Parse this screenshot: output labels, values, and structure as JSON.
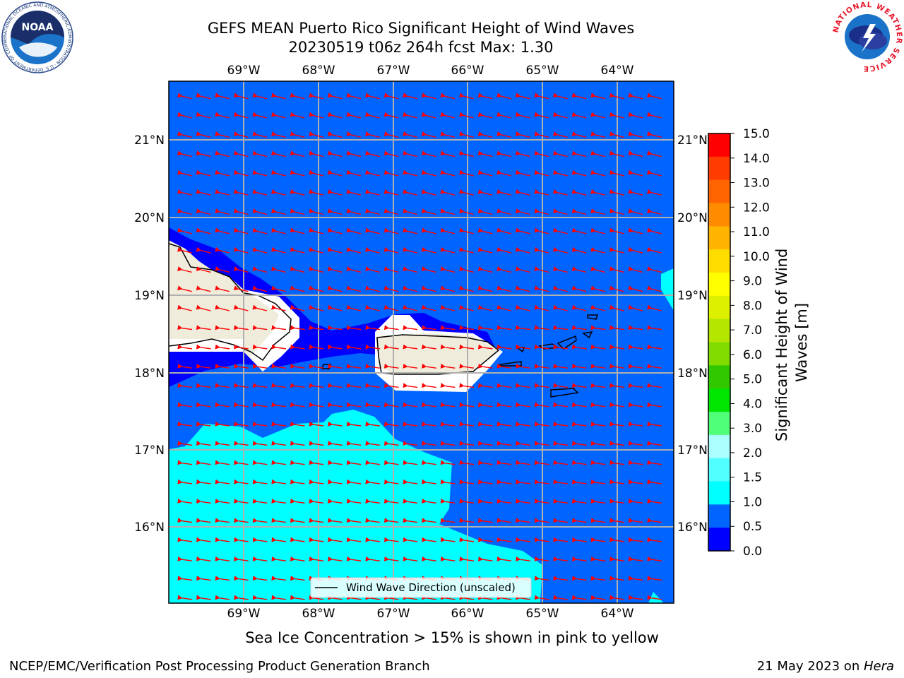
{
  "title": {
    "line1": "GEFS MEAN Puerto Rico Significant Height of Wind Waves",
    "line2": "20230519 t06z 264h fcst   Max: 1.30"
  },
  "map": {
    "lon_labels": [
      "69°W",
      "68°W",
      "67°W",
      "66°W",
      "65°W",
      "64°W"
    ],
    "lat_labels": [
      "21°N",
      "20°N",
      "19°N",
      "18°N",
      "17°N",
      "16°N"
    ],
    "legend_label": "Wind Wave Direction (unscaled)",
    "colors": {
      "ocean_low": "#0064ff",
      "ocean_lowest": "#0000ff",
      "ocean_mid": "#00ffff",
      "land": "#f0ecdc",
      "arrow": "#ff0000",
      "grid": "#b0b0b0"
    }
  },
  "colorbar": {
    "label": "Significant Height of Wind Waves [m]",
    "ticks": [
      "15.0",
      "14.0",
      "13.0",
      "12.0",
      "11.0",
      "10.0",
      "9.0",
      "8.0",
      "7.0",
      "6.0",
      "5.0",
      "4.0",
      "3.0",
      "2.0",
      "1.5",
      "1.0",
      "0.5",
      "0.0"
    ],
    "colors": [
      "#ff0000",
      "#ff3c00",
      "#ff6400",
      "#ff8c00",
      "#ffb400",
      "#ffdc00",
      "#ffff00",
      "#dcf000",
      "#b4e600",
      "#82dc00",
      "#32c800",
      "#00e600",
      "#50ff78",
      "#aaffff",
      "#50ffff",
      "#00ffff",
      "#0064ff",
      "#0000ff"
    ]
  },
  "note": "Sea Ice Concentration > 15% is shown in pink to yellow",
  "footer": {
    "left": "NCEP/EMC/Verification Post Processing Product Generation Branch",
    "date": "21 May 2023 on ",
    "host": "Hera"
  },
  "logos": {
    "noaa_text": "NOAA",
    "noaa_ring": "NATIONAL OCEANIC AND ATMOSPHERIC ADMINISTRATION · U.S. DEPARTMENT OF COMMERCE",
    "nws_ring": "NATIONAL WEATHER SERVICE"
  }
}
